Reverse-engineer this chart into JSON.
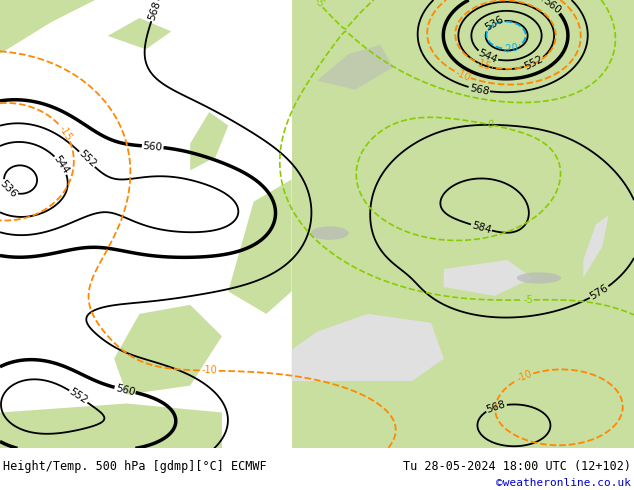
{
  "title_left": "Height/Temp. 500 hPa [gdmp][°C] ECMWF",
  "title_right": "Tu 28-05-2024 18:00 UTC (12+102)",
  "watermark": "©weatheronline.co.uk",
  "bg_color": "#ffffff",
  "sea_color": "#e0e0e0",
  "land_green_color": "#c8dfa0",
  "land_gray_color": "#b8b8b8",
  "land_white_color": "#f0f0f0",
  "contour_height_color": "#000000",
  "contour_temp_neg_color": "#ff8800",
  "contour_temp_pos_color": "#00aaee",
  "contour_temp_green_color": "#88cc00",
  "footer_left_color": "#000000",
  "footer_right_color": "#000000",
  "watermark_color": "#0000cc",
  "fig_width": 6.34,
  "fig_height": 4.9,
  "dpi": 100
}
